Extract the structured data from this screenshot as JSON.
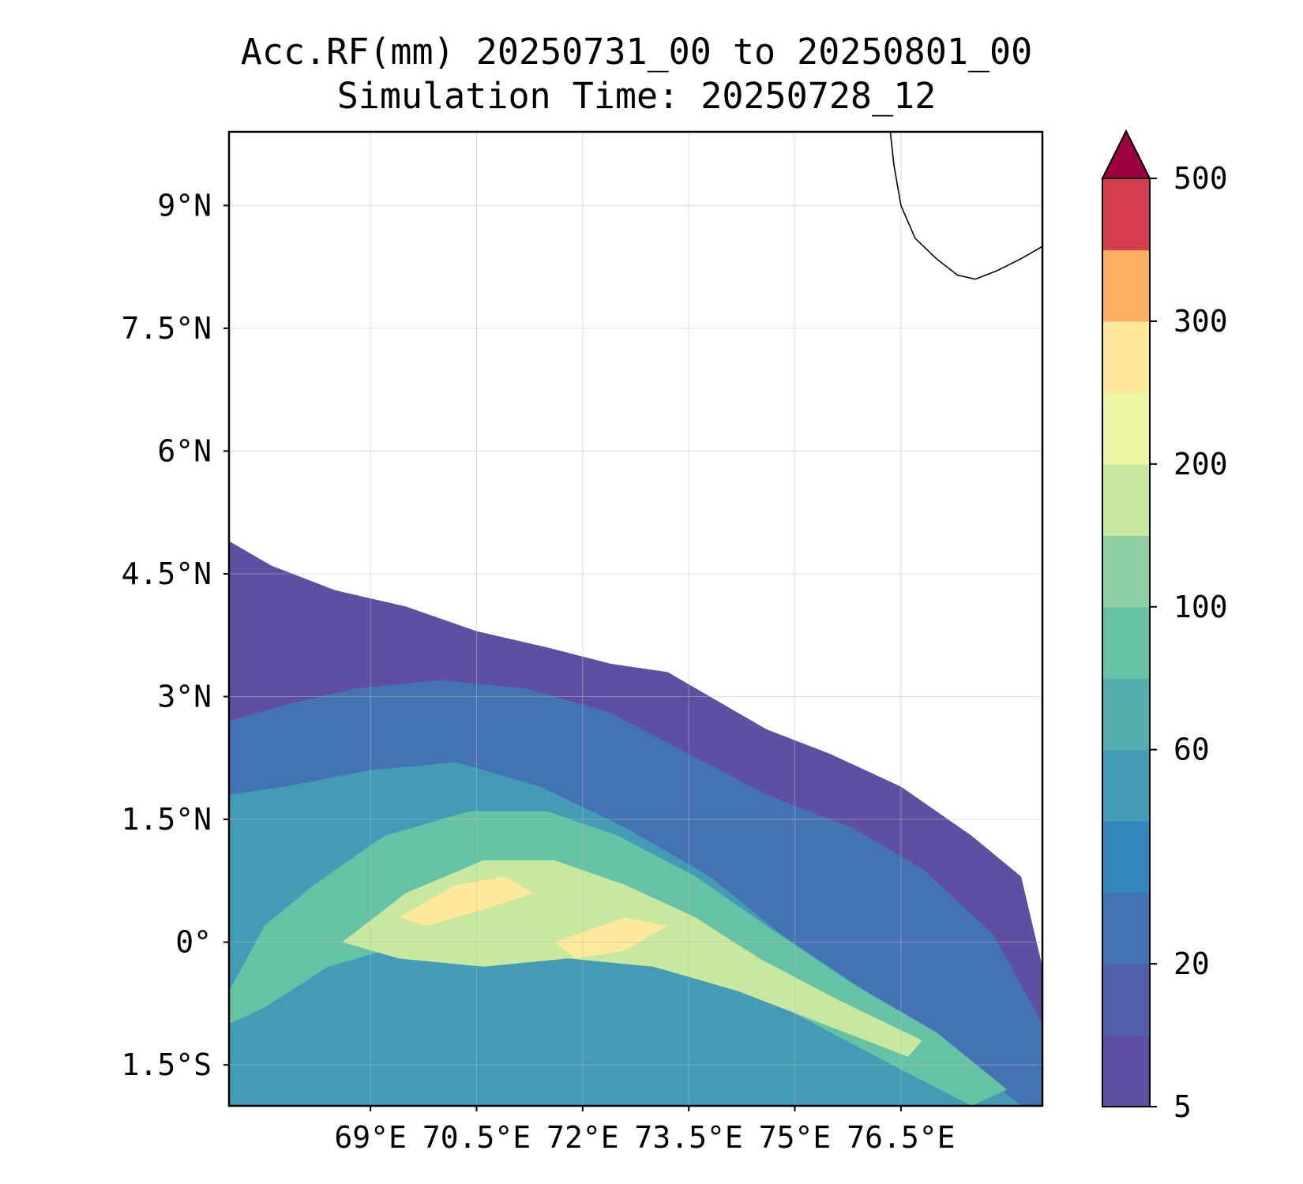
{
  "title": {
    "line1": "Acc.RF(mm) 20250731_00 to 20250801_00",
    "line2": "Simulation Time: 20250728_12"
  },
  "map": {
    "lon_range": [
      67.0,
      78.5
    ],
    "lat_range": [
      -2.0,
      9.9
    ],
    "lon_ticks": [
      {
        "value": 69.0,
        "label": "69°E"
      },
      {
        "value": 70.5,
        "label": "70.5°E"
      },
      {
        "value": 72.0,
        "label": "72°E"
      },
      {
        "value": 73.5,
        "label": "73.5°E"
      },
      {
        "value": 75.0,
        "label": "75°E"
      },
      {
        "value": 76.5,
        "label": "76.5°E"
      }
    ],
    "lat_ticks": [
      {
        "value": 9.0,
        "label": "9°N"
      },
      {
        "value": 7.5,
        "label": "7.5°N"
      },
      {
        "value": 6.0,
        "label": "6°N"
      },
      {
        "value": 4.5,
        "label": "4.5°N"
      },
      {
        "value": 3.0,
        "label": "3°N"
      },
      {
        "value": 1.5,
        "label": "1.5°N"
      },
      {
        "value": 0.0,
        "label": "0°"
      },
      {
        "value": -1.5,
        "label": "1.5°S"
      }
    ],
    "gridlines": true
  },
  "colorbar": {
    "levels": [
      5,
      10,
      20,
      30,
      40,
      60,
      80,
      100,
      150,
      200,
      250,
      300,
      400,
      500
    ],
    "colors": [
      "#5e4fa2",
      "#4f5fab",
      "#4473b4",
      "#3288bd",
      "#439bb5",
      "#54aeae",
      "#66c2a5",
      "#8ed0a4",
      "#c7e89e",
      "#ecf6a2",
      "#fee89a",
      "#fdae61",
      "#d53e4f"
    ],
    "extend_color": "#9e0142",
    "extend": "max",
    "tick_labels": [
      {
        "value": 5,
        "label": "5"
      },
      {
        "value": 20,
        "label": "20"
      },
      {
        "value": 60,
        "label": "60"
      },
      {
        "value": 100,
        "label": "100"
      },
      {
        "value": 200,
        "label": "200"
      },
      {
        "value": 300,
        "label": "300"
      },
      {
        "value": 500,
        "label": "500"
      }
    ]
  },
  "chart_data": {
    "type": "heatmap",
    "variable": "Acc.RF(mm)",
    "regions": [
      {
        "level": 5,
        "points": [
          [
            67.0,
            -2.0
          ],
          [
            78.5,
            -2.0
          ],
          [
            78.5,
            -0.3
          ],
          [
            78.2,
            0.8
          ],
          [
            77.5,
            1.3
          ],
          [
            76.5,
            1.9
          ],
          [
            75.5,
            2.3
          ],
          [
            74.6,
            2.6
          ],
          [
            73.8,
            3.0
          ],
          [
            73.2,
            3.3
          ],
          [
            72.4,
            3.4
          ],
          [
            71.5,
            3.6
          ],
          [
            70.5,
            3.8
          ],
          [
            69.5,
            4.1
          ],
          [
            68.5,
            4.3
          ],
          [
            67.6,
            4.6
          ],
          [
            67.0,
            4.9
          ]
        ]
      },
      {
        "level": 20,
        "points": [
          [
            67.0,
            -2.0
          ],
          [
            78.5,
            -2.0
          ],
          [
            78.5,
            -1.0
          ],
          [
            77.8,
            0.1
          ],
          [
            76.8,
            0.9
          ],
          [
            75.8,
            1.4
          ],
          [
            74.6,
            1.8
          ],
          [
            73.5,
            2.3
          ],
          [
            72.4,
            2.8
          ],
          [
            71.2,
            3.1
          ],
          [
            70.0,
            3.2
          ],
          [
            68.8,
            3.1
          ],
          [
            67.8,
            2.9
          ],
          [
            67.0,
            2.7
          ]
        ]
      },
      {
        "level": 40,
        "points": [
          [
            67.0,
            -2.0
          ],
          [
            78.2,
            -2.0
          ],
          [
            77.2,
            -1.3
          ],
          [
            76.0,
            -0.6
          ],
          [
            74.8,
            0.1
          ],
          [
            73.8,
            0.8
          ],
          [
            72.6,
            1.4
          ],
          [
            71.4,
            1.9
          ],
          [
            70.2,
            2.2
          ],
          [
            69.0,
            2.1
          ],
          [
            67.8,
            1.9
          ],
          [
            67.0,
            1.8
          ]
        ]
      },
      {
        "level": 80,
        "points": [
          [
            67.0,
            -0.6
          ],
          [
            67.5,
            0.2
          ],
          [
            68.2,
            0.7
          ],
          [
            69.2,
            1.3
          ],
          [
            70.4,
            1.6
          ],
          [
            71.5,
            1.6
          ],
          [
            72.5,
            1.3
          ],
          [
            73.6,
            0.8
          ],
          [
            74.6,
            0.2
          ],
          [
            75.8,
            -0.5
          ],
          [
            77.0,
            -1.1
          ],
          [
            78.0,
            -1.8
          ],
          [
            77.5,
            -2.0
          ],
          [
            76.6,
            -1.6
          ],
          [
            75.5,
            -1.1
          ],
          [
            74.4,
            -0.6
          ],
          [
            73.2,
            -0.3
          ],
          [
            72.0,
            -0.1
          ],
          [
            70.8,
            -0.1
          ],
          [
            69.6,
            0.0
          ],
          [
            68.4,
            -0.3
          ],
          [
            67.5,
            -0.8
          ],
          [
            67.0,
            -1.0
          ]
        ]
      },
      {
        "level": 150,
        "points": [
          [
            68.6,
            0.0
          ],
          [
            69.5,
            0.6
          ],
          [
            70.6,
            1.0
          ],
          [
            71.6,
            1.0
          ],
          [
            72.6,
            0.7
          ],
          [
            73.6,
            0.3
          ],
          [
            74.5,
            -0.2
          ],
          [
            75.6,
            -0.7
          ],
          [
            76.8,
            -1.2
          ],
          [
            76.6,
            -1.4
          ],
          [
            75.4,
            -1.0
          ],
          [
            74.2,
            -0.6
          ],
          [
            73.0,
            -0.3
          ],
          [
            71.8,
            -0.2
          ],
          [
            70.6,
            -0.3
          ],
          [
            69.4,
            -0.2
          ]
        ]
      },
      {
        "level": 250,
        "points": [
          [
            69.4,
            0.3
          ],
          [
            70.2,
            0.7
          ],
          [
            70.9,
            0.8
          ],
          [
            71.3,
            0.6
          ],
          [
            70.6,
            0.4
          ],
          [
            69.8,
            0.2
          ]
        ]
      },
      {
        "level": 250,
        "points": [
          [
            71.6,
            0.0
          ],
          [
            72.6,
            0.3
          ],
          [
            73.2,
            0.2
          ],
          [
            72.6,
            -0.1
          ],
          [
            71.9,
            -0.2
          ]
        ]
      }
    ],
    "coastline": [
      [
        76.35,
        9.9
      ],
      [
        76.4,
        9.5
      ],
      [
        76.5,
        9.0
      ],
      [
        76.7,
        8.6
      ],
      [
        77.0,
        8.35
      ],
      [
        77.3,
        8.15
      ],
      [
        77.55,
        8.1
      ],
      [
        77.85,
        8.2
      ],
      [
        78.2,
        8.35
      ],
      [
        78.5,
        8.5
      ]
    ]
  }
}
